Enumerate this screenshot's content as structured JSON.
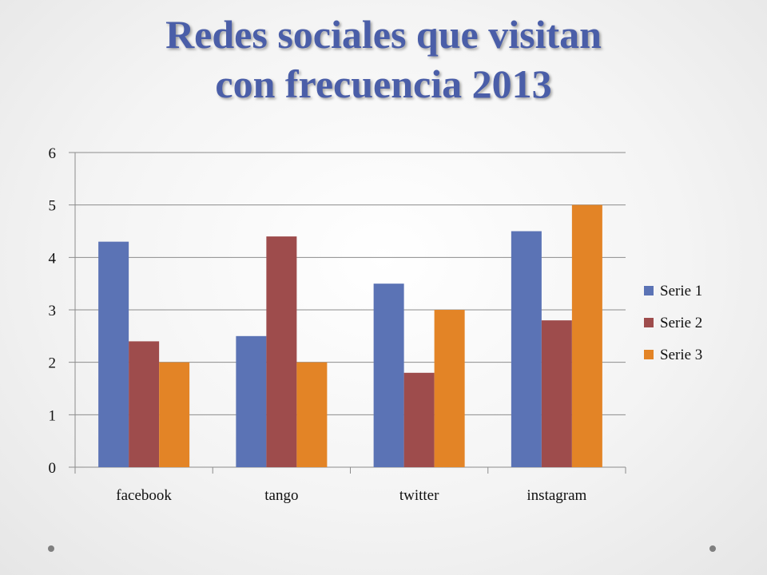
{
  "slide": {
    "title_line1": "Redes sociales que visitan",
    "title_line2": "con frecuencia 2013"
  },
  "chart_data": {
    "type": "bar",
    "categories": [
      "facebook",
      "tango",
      "twitter",
      "instagram"
    ],
    "series": [
      {
        "name": "Serie 1",
        "values": [
          4.3,
          2.5,
          3.5,
          4.5
        ],
        "color": "#5b73b5"
      },
      {
        "name": "Serie 2",
        "values": [
          2.4,
          4.4,
          1.8,
          2.8
        ],
        "color": "#9e4c4c"
      },
      {
        "name": "Serie 3",
        "values": [
          2,
          2,
          3,
          5
        ],
        "color": "#e38426"
      }
    ],
    "ylim": [
      0,
      6
    ],
    "yticks": [
      0,
      1,
      2,
      3,
      4,
      5,
      6
    ],
    "grid": true,
    "legend_position": "right",
    "xlabel": "",
    "ylabel": ""
  }
}
